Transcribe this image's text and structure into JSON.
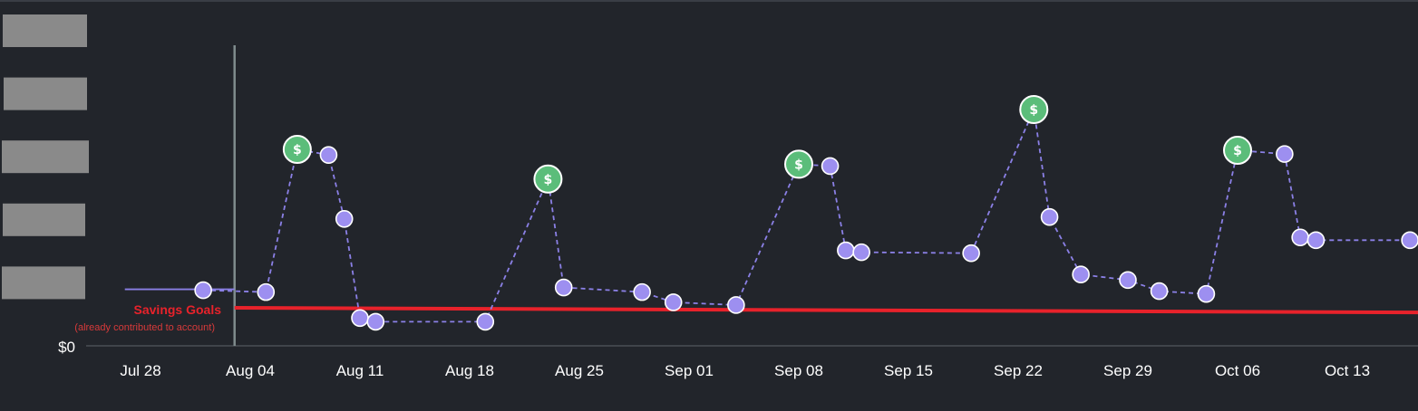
{
  "chart_data": {
    "type": "line",
    "x_labels": [
      "Jul 28",
      "Aug 04",
      "Aug 11",
      "Aug 18",
      "Aug 25",
      "Sep 01",
      "Sep 08",
      "Sep 15",
      "Sep 22",
      "Sep 29",
      "Oct 06",
      "Oct 13"
    ],
    "y_zero_label": "$0",
    "ylim": [
      0,
      340
    ],
    "y_tick_values": [
      68,
      136,
      204,
      272,
      340
    ],
    "series": [
      {
        "style": "dashed",
        "color": "#8b80e6",
        "points": [
          {
            "x": "Aug 01",
            "y": 60
          },
          {
            "x": "Aug 05",
            "y": 58
          },
          {
            "x": "Aug 07",
            "y": 212,
            "marker": "income"
          },
          {
            "x": "Aug 09",
            "y": 206
          },
          {
            "x": "Aug 10",
            "y": 137
          },
          {
            "x": "Aug 11",
            "y": 30
          },
          {
            "x": "Aug 12",
            "y": 26
          },
          {
            "x": "Aug 19",
            "y": 26
          },
          {
            "x": "Aug 23",
            "y": 180,
            "marker": "income"
          },
          {
            "x": "Aug 24",
            "y": 63
          },
          {
            "x": "Aug 29",
            "y": 58
          },
          {
            "x": "Aug 31",
            "y": 47
          },
          {
            "x": "Sep 04",
            "y": 44
          },
          {
            "x": "Sep 08",
            "y": 196,
            "marker": "income"
          },
          {
            "x": "Sep 10",
            "y": 194
          },
          {
            "x": "Sep 11",
            "y": 103
          },
          {
            "x": "Sep 12",
            "y": 101
          },
          {
            "x": "Sep 19",
            "y": 100
          },
          {
            "x": "Sep 23",
            "y": 255,
            "marker": "income"
          },
          {
            "x": "Sep 24",
            "y": 139
          },
          {
            "x": "Sep 26",
            "y": 77
          },
          {
            "x": "Sep 29",
            "y": 71
          },
          {
            "x": "Oct 01",
            "y": 59
          },
          {
            "x": "Oct 04",
            "y": 56
          },
          {
            "x": "Oct 06",
            "y": 211,
            "marker": "income"
          },
          {
            "x": "Oct 09",
            "y": 207
          },
          {
            "x": "Oct 10",
            "y": 117
          },
          {
            "x": "Oct 11",
            "y": 114
          },
          {
            "x": "Oct 17",
            "y": 114
          }
        ]
      },
      {
        "style": "solid",
        "color": "#8b80e6",
        "points": [
          {
            "x": "Jul 27",
            "y": 61
          },
          {
            "x": "Aug 03",
            "y": 61
          }
        ]
      }
    ],
    "goal_line": {
      "label": "Savings Goals",
      "sublabel": "(already contributed to account)",
      "color": "#e8222b",
      "values": [
        {
          "x": "Aug 03",
          "y": 41
        },
        {
          "x": "Oct 17",
          "y": 36
        }
      ]
    },
    "today_marker_x": "Aug 03",
    "income_marker_symbol": "$",
    "grid": false,
    "legend": "none"
  }
}
